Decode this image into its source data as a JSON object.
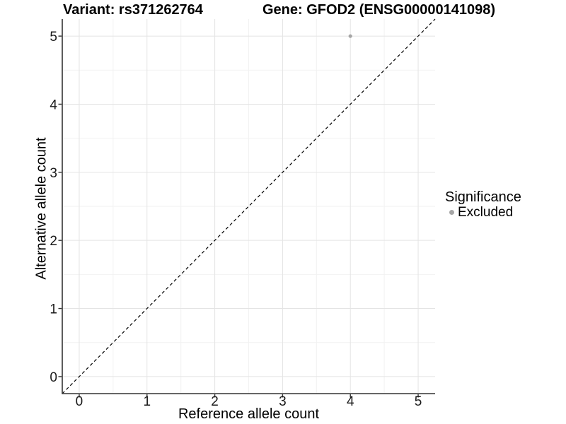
{
  "chart_data": {
    "type": "scatter",
    "title_left": "Variant: rs371262764",
    "title_right": "Gene: GFOD2 (ENSG00000141098)",
    "xlabel": "Reference allele count",
    "ylabel": "Alternative allele count",
    "xlim": [
      -0.25,
      5.25
    ],
    "ylim": [
      -0.25,
      5.25
    ],
    "xticks": [
      0,
      1,
      2,
      3,
      4,
      5
    ],
    "yticks": [
      0,
      1,
      2,
      3,
      4,
      5
    ],
    "x_minor": [
      0.5,
      1.5,
      2.5,
      3.5,
      4.5
    ],
    "y_minor": [
      0.5,
      1.5,
      2.5,
      3.5,
      4.5
    ],
    "grid": "major+minor",
    "legend_title": "Significance",
    "legend_position": "right",
    "series": [
      {
        "name": "Excluded",
        "color": "#a6a6a6",
        "points": [
          {
            "x": 4,
            "y": 5
          }
        ]
      }
    ],
    "reference_line": {
      "type": "identity",
      "from": [
        -0.25,
        -0.25
      ],
      "to": [
        5.25,
        5.25
      ],
      "style": "dashed",
      "color": "#000000"
    }
  },
  "colors": {
    "background": "#ffffff",
    "axis_line": "#333333",
    "tick_mark": "#333333",
    "grid_major": "#e4e4e4",
    "grid_minor": "#f2f2f2",
    "tick_text": "#1a1a1a",
    "point": "#a6a6a6"
  }
}
